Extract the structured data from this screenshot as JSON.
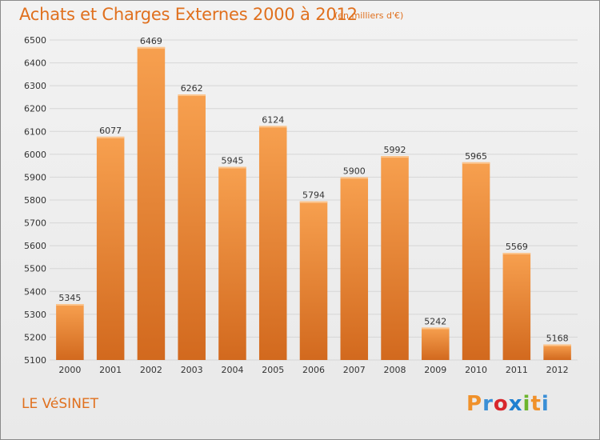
{
  "header": {
    "title": "Achats et Charges Externes 2000 à 2012",
    "subtitle": "(en milliers d'€)"
  },
  "footer": {
    "commune": "LE VéSINET",
    "logo": [
      "P",
      "r",
      "o",
      "x",
      "i",
      "t",
      "i"
    ]
  },
  "colors": {
    "title": "#e0701e",
    "bar_top": "#f7a04f",
    "bar_bottom": "#d2691e",
    "grid": "#d6d6d6",
    "logo_letters": [
      "#f0912a",
      "#3a8fd6",
      "#d8262b",
      "#1e7fd0",
      "#6cb52d",
      "#f0912a",
      "#3a8fd6"
    ]
  },
  "chart_data": {
    "type": "bar",
    "title": "Achats et Charges Externes 2000 à 2012",
    "subtitle": "(en milliers d'€)",
    "categories": [
      "2000",
      "2001",
      "2002",
      "2003",
      "2004",
      "2005",
      "2006",
      "2007",
      "2008",
      "2009",
      "2010",
      "2011",
      "2012"
    ],
    "values": [
      5345,
      6077,
      6469,
      6262,
      5945,
      6124,
      5794,
      5900,
      5992,
      5242,
      5965,
      5569,
      5168
    ],
    "ylim": [
      5100,
      6500
    ],
    "yticks": [
      5100,
      5200,
      5300,
      5400,
      5500,
      5600,
      5700,
      5800,
      5900,
      6000,
      6100,
      6200,
      6300,
      6400,
      6500
    ],
    "grid": true,
    "legend": "none"
  }
}
